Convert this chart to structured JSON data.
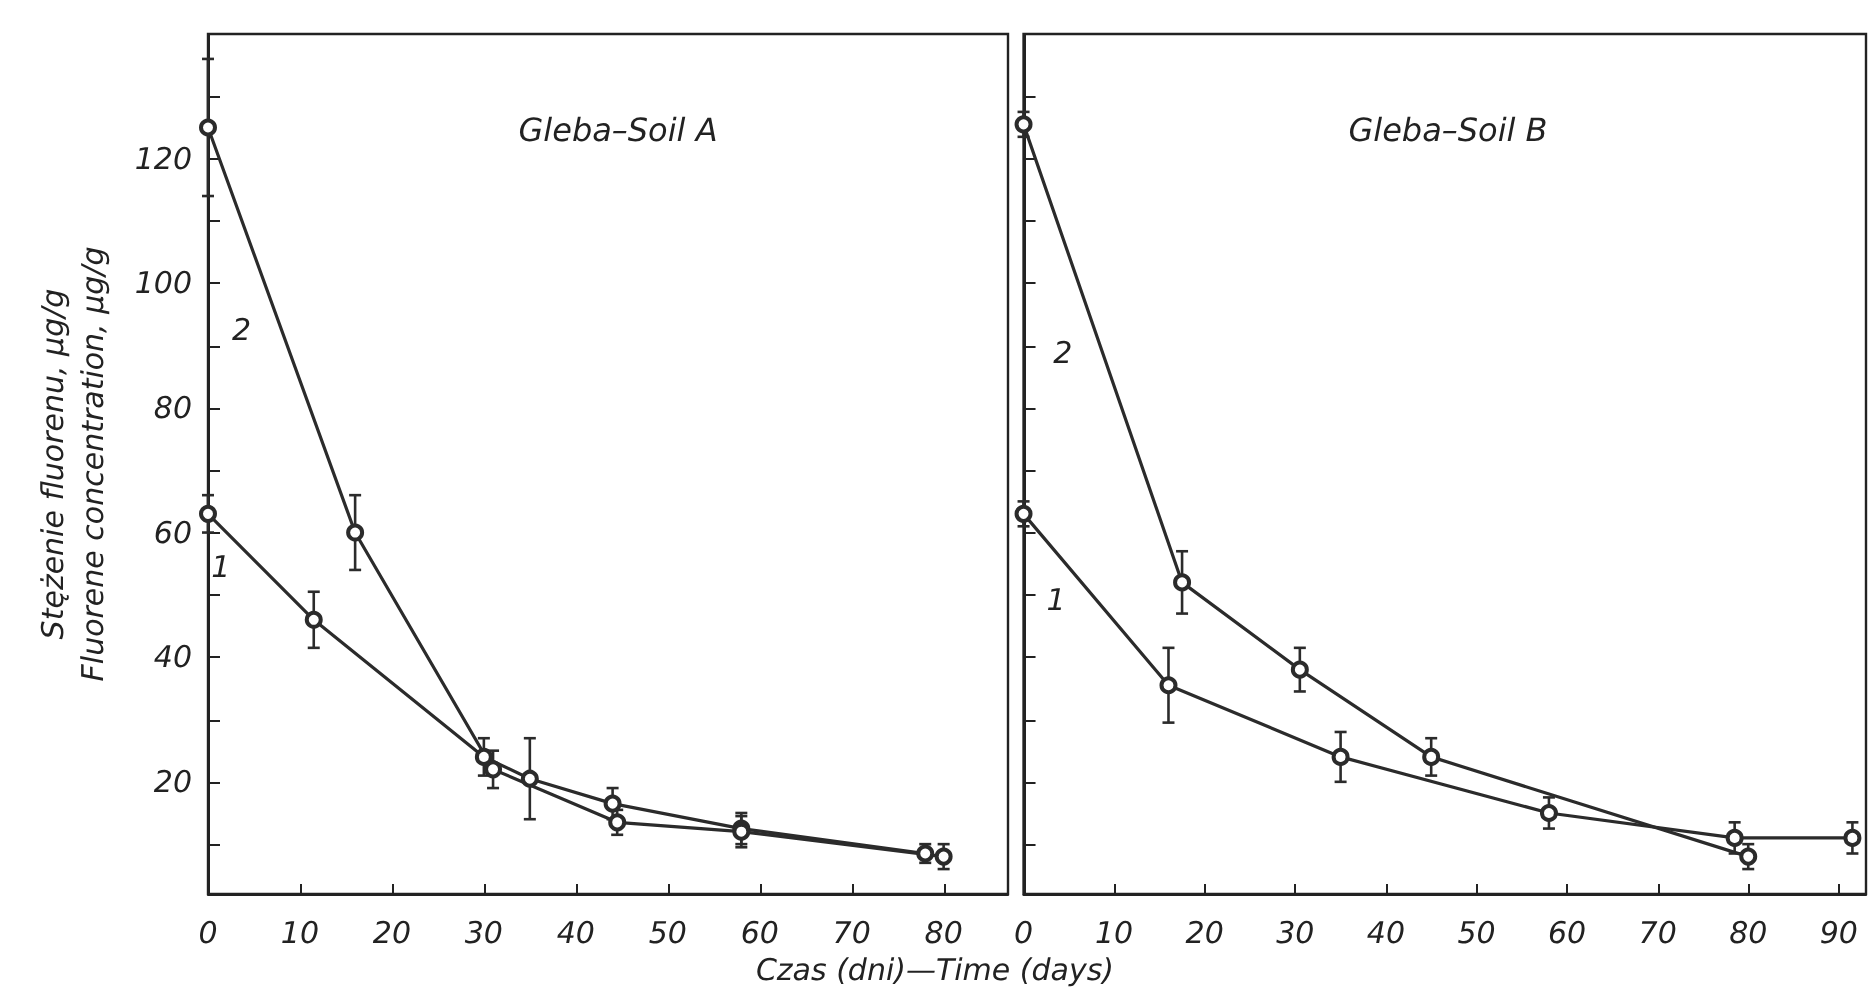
{
  "chart_data": [
    {
      "type": "line",
      "title": "Gleba–Soil A",
      "xlabel": "Czas (dni)—Time (days)",
      "ylabel": "Stężenie fluorenu, µg/g\nFluorene concentration, µg/g",
      "marker": "circle",
      "line_style": "solid",
      "xlim": [
        0,
        87
      ],
      "xticks": [
        0,
        10,
        20,
        30,
        40,
        50,
        60,
        70,
        80
      ],
      "ylim": [
        2,
        140
      ],
      "yticks": [
        {
          "value": 10,
          "label": null
        },
        20,
        {
          "value": 30,
          "label": null
        },
        40,
        {
          "value": 50,
          "label": null
        },
        60,
        {
          "value": 70,
          "label": null
        },
        80,
        {
          "value": 90,
          "label": null
        },
        100,
        {
          "value": 110,
          "label": null
        },
        120,
        {
          "value": 130,
          "label": null
        }
      ],
      "series": [
        {
          "name": "1",
          "color": "#2b2b2b",
          "x": [
            0,
            11.5,
            30,
            35,
            44,
            58,
            78
          ],
          "values": [
            63,
            46,
            24,
            20.5,
            16.5,
            12.5,
            8.5
          ],
          "errors": [
            3,
            4.5,
            3,
            6.5,
            2.5,
            2.5,
            1.5
          ]
        },
        {
          "name": "2",
          "color": "#2b2b2b",
          "x": [
            0,
            16,
            31,
            44.5,
            58,
            80
          ],
          "values": [
            125,
            60,
            22,
            13.5,
            12,
            8
          ],
          "errors": [
            11,
            6,
            3,
            2,
            2.5,
            2
          ]
        }
      ]
    },
    {
      "type": "line",
      "title": "Gleba–Soil B",
      "marker": "circle",
      "line_style": "solid",
      "tick_labels": "x",
      "xlim": [
        0,
        93
      ],
      "xticks": [
        0,
        10,
        20,
        30,
        40,
        50,
        60,
        70,
        80,
        90
      ],
      "ylim": [
        2,
        140
      ],
      "yticks": [
        {
          "value": 10,
          "label": null
        },
        20,
        {
          "value": 30,
          "label": null
        },
        40,
        {
          "value": 50,
          "label": null
        },
        60,
        {
          "value": 70,
          "label": null
        },
        80,
        {
          "value": 90,
          "label": null
        },
        100,
        {
          "value": 110,
          "label": null
        },
        120,
        {
          "value": 130,
          "label": null
        }
      ],
      "series": [
        {
          "name": "1",
          "color": "#2b2b2b",
          "x": [
            0,
            16,
            35,
            58,
            78.5,
            91.5
          ],
          "values": [
            63,
            35.5,
            24,
            15,
            11,
            11
          ],
          "errors": [
            2,
            6,
            4,
            2.5,
            2.5,
            2.5
          ]
        },
        {
          "name": "2",
          "color": "#2b2b2b",
          "x": [
            0,
            17.5,
            30.5,
            45,
            80
          ],
          "values": [
            125.5,
            52,
            38,
            24,
            8
          ],
          "errors": [
            2,
            5,
            3.5,
            3,
            2
          ]
        }
      ]
    }
  ]
}
